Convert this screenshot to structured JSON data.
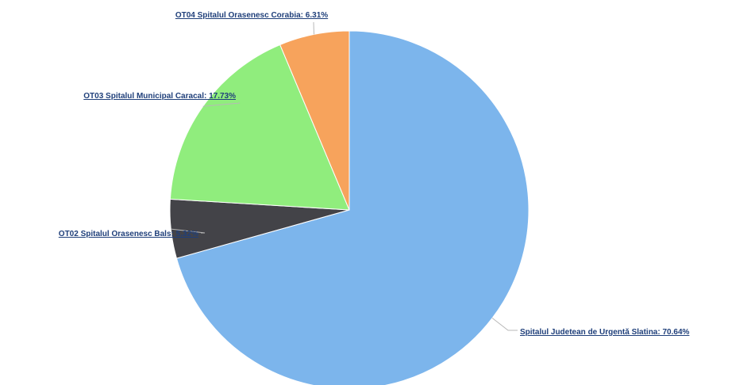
{
  "chart_data": {
    "type": "pie",
    "slices": [
      {
        "label": "Spitalul Judetean de Urgentă Slatina",
        "value": 70.64,
        "display": "Spitalul Judetean de Urgentă Slatina: 70.64%",
        "color": "#7cb5ec"
      },
      {
        "label": "OT02 Spitalul Orasenesc Bals",
        "value": 5.32,
        "display": "OT02 Spitalul Orasenesc Bals: 5.32%",
        "color": "#434348"
      },
      {
        "label": "OT03 Spitalul Municipal Caracal",
        "value": 17.73,
        "display": "OT03 Spitalul Municipal Caracal: 17.73%",
        "color": "#90ed7d"
      },
      {
        "label": "OT04 Spitalul Orasenesc Corabia",
        "value": 6.31,
        "display": "OT04 Spitalul Orasenesc Corabia: 6.31%",
        "color": "#f7a35c"
      }
    ],
    "start_angle": "top",
    "direction": "clockwise"
  }
}
